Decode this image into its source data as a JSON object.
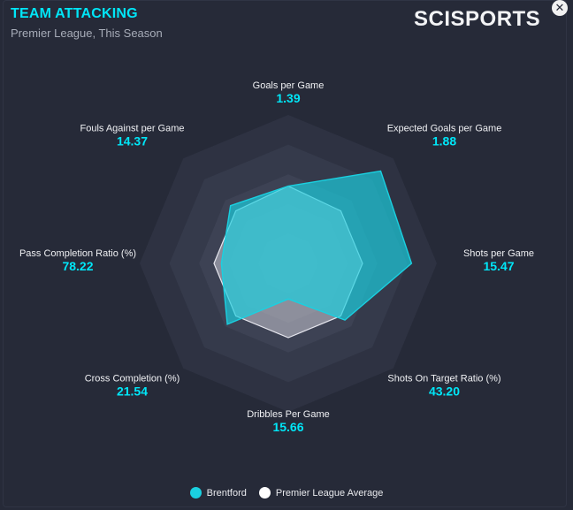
{
  "header": {
    "title": "TEAM ATTACKING",
    "subtitle": "Premier League, This Season",
    "logo": "SCISPORTS",
    "close_icon": "close-icon"
  },
  "colors": {
    "team": "#1ad0e0",
    "average": "#c9c9d2",
    "accent": "#00e6f7",
    "rings": [
      "#2e3242",
      "#353a4b",
      "#3d4254",
      "#454a5c",
      "#4d5365"
    ]
  },
  "chart_data": {
    "type": "radar",
    "title": "TEAM ATTACKING",
    "subtitle": "Premier League, This Season",
    "axes": [
      {
        "label": "Goals per Game",
        "value": "1.39"
      },
      {
        "label": "Expected Goals per Game",
        "value": "1.88"
      },
      {
        "label": "Shots per Game",
        "value": "15.47"
      },
      {
        "label": "Shots On Target Ratio (%)",
        "value": "43.20"
      },
      {
        "label": "Dribbles Per Game",
        "value": "15.66"
      },
      {
        "label": "Cross Completion (%)",
        "value": "21.54"
      },
      {
        "label": "Pass Completion Ratio (%)",
        "value": "78.22"
      },
      {
        "label": "Fouls Against per Game",
        "value": "14.37"
      }
    ],
    "series": [
      {
        "name": "Brentford",
        "values": [
          0.52,
          0.88,
          0.83,
          0.54,
          0.24,
          0.58,
          0.45,
          0.55
        ]
      },
      {
        "name": "Premier League Average",
        "values": [
          0.52,
          0.5,
          0.5,
          0.5,
          0.5,
          0.5,
          0.5,
          0.5
        ]
      }
    ],
    "scale": [
      0,
      1
    ],
    "rings": 5,
    "legend": "bottom-center"
  }
}
